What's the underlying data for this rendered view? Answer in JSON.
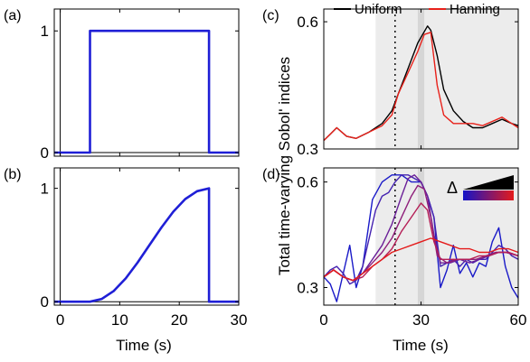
{
  "figure": {
    "panel_labels": [
      "(a)",
      "(b)",
      "(c)",
      "(d)"
    ],
    "left_xlabel": "Time (s)",
    "right_xlabel": "Time (s)",
    "right_ylabel": "Total time-varying Sobol' indices",
    "delta_symbol": "Δ"
  },
  "chart_data": [
    {
      "panel": "a",
      "type": "line",
      "xlim": [
        -1,
        30
      ],
      "ylim": [
        -0.03,
        1.18
      ],
      "x_ticks": [
        0,
        10,
        20,
        30
      ],
      "x_tick_labels": [
        "0",
        "10",
        "20",
        "30"
      ],
      "y_ticks": [
        0,
        1
      ],
      "y_tick_labels": [
        "0",
        "1"
      ],
      "series": [
        {
          "color": "#1f1fd6",
          "x": [
            -1,
            5,
            5,
            25,
            25,
            30
          ],
          "y": [
            0,
            0,
            1,
            1,
            0,
            0
          ]
        }
      ]
    },
    {
      "panel": "b",
      "type": "line",
      "xlim": [
        -1,
        30
      ],
      "ylim": [
        -0.03,
        1.18
      ],
      "x_ticks": [
        0,
        10,
        20,
        30
      ],
      "x_tick_labels": [
        "0",
        "10",
        "20",
        "30"
      ],
      "y_ticks": [
        0,
        1
      ],
      "y_tick_labels": [
        "0",
        "1"
      ],
      "series": [
        {
          "color": "#1f1fd6",
          "x": [
            -1,
            5,
            7,
            9,
            11,
            13,
            15,
            17,
            19,
            21,
            23,
            25,
            25,
            30
          ],
          "y": [
            0,
            0,
            0.025,
            0.095,
            0.206,
            0.345,
            0.5,
            0.655,
            0.794,
            0.905,
            0.975,
            1,
            0,
            0
          ]
        }
      ]
    },
    {
      "panel": "c",
      "type": "line",
      "xlim": [
        0,
        60
      ],
      "ylim": [
        0.3,
        0.63
      ],
      "x_ticks": [
        0,
        30,
        60
      ],
      "x_tick_labels": [
        "0",
        "30",
        "60"
      ],
      "y_ticks": [
        0.3,
        0.6
      ],
      "y_tick_labels": [
        "0.3",
        "0.6"
      ],
      "shaded_band": [
        16,
        60
      ],
      "darker_band": [
        29,
        31
      ],
      "dotted_line_x": 22,
      "legend": [
        "Uniform",
        "Hanning"
      ],
      "series": [
        {
          "name": "Uniform",
          "color": "#000000",
          "x": [
            0,
            2,
            4,
            7,
            10,
            14,
            18,
            21,
            23,
            26,
            29,
            32,
            33,
            35,
            37,
            40,
            43,
            46,
            49,
            52,
            55,
            58,
            60
          ],
          "y": [
            0.32,
            0.335,
            0.35,
            0.33,
            0.325,
            0.34,
            0.36,
            0.39,
            0.43,
            0.49,
            0.55,
            0.59,
            0.58,
            0.52,
            0.44,
            0.39,
            0.365,
            0.35,
            0.35,
            0.36,
            0.37,
            0.36,
            0.355
          ]
        },
        {
          "name": "Hanning",
          "color": "#e8211a",
          "x": [
            0,
            2,
            4,
            7,
            10,
            14,
            18,
            21,
            23,
            26,
            29,
            31,
            33,
            35,
            37,
            40,
            43,
            46,
            49,
            52,
            55,
            58,
            60
          ],
          "y": [
            0.32,
            0.335,
            0.35,
            0.33,
            0.325,
            0.34,
            0.355,
            0.38,
            0.43,
            0.48,
            0.53,
            0.57,
            0.575,
            0.45,
            0.38,
            0.36,
            0.36,
            0.36,
            0.355,
            0.365,
            0.375,
            0.36,
            0.35
          ]
        }
      ]
    },
    {
      "panel": "d",
      "type": "line",
      "xlim": [
        0,
        60
      ],
      "ylim": [
        0.25,
        0.64
      ],
      "x_ticks": [
        0,
        30,
        60
      ],
      "x_tick_labels": [
        "0",
        "30",
        "60"
      ],
      "y_ticks": [
        0.3,
        0.6
      ],
      "y_tick_labels": [
        "0.3",
        "0.6"
      ],
      "shaded_band": [
        16,
        60
      ],
      "darker_band": [
        29,
        31
      ],
      "dotted_line_x": 22,
      "colorbar": {
        "colors": [
          "#1414c8",
          "#e41b1b"
        ]
      },
      "series": [
        {
          "color": "#1a1ac8",
          "x": [
            0,
            2,
            4,
            6,
            8,
            10,
            12,
            15,
            18,
            21,
            24,
            27,
            30,
            32,
            34,
            36,
            38,
            40,
            42,
            44,
            46,
            48,
            50,
            52,
            54,
            56,
            58,
            60
          ],
          "y": [
            0.33,
            0.31,
            0.26,
            0.34,
            0.42,
            0.3,
            0.36,
            0.55,
            0.6,
            0.62,
            0.62,
            0.6,
            0.6,
            0.56,
            0.5,
            0.3,
            0.35,
            0.42,
            0.34,
            0.37,
            0.33,
            0.37,
            0.36,
            0.43,
            0.47,
            0.36,
            0.3,
            0.27
          ]
        },
        {
          "color": "#4422b0",
          "x": [
            0,
            2,
            4,
            6,
            8,
            10,
            12,
            14,
            16,
            18,
            20,
            22,
            24,
            26,
            28,
            30,
            32,
            34,
            36,
            38,
            40,
            42,
            44,
            46,
            48,
            50,
            52,
            54,
            56,
            58,
            60
          ],
          "y": [
            0.33,
            0.35,
            0.36,
            0.34,
            0.31,
            0.32,
            0.36,
            0.44,
            0.52,
            0.56,
            0.57,
            0.6,
            0.62,
            0.62,
            0.61,
            0.6,
            0.56,
            0.5,
            0.36,
            0.37,
            0.38,
            0.36,
            0.38,
            0.37,
            0.38,
            0.38,
            0.4,
            0.42,
            0.41,
            0.39,
            0.38
          ]
        },
        {
          "color": "#6a1f98",
          "x": [
            0,
            3,
            6,
            9,
            12,
            15,
            18,
            21,
            24,
            26,
            28,
            30,
            32,
            34,
            36,
            39,
            42,
            45,
            48,
            51,
            54,
            57,
            60
          ],
          "y": [
            0.33,
            0.35,
            0.33,
            0.32,
            0.34,
            0.38,
            0.42,
            0.48,
            0.56,
            0.61,
            0.62,
            0.6,
            0.56,
            0.45,
            0.37,
            0.37,
            0.38,
            0.37,
            0.38,
            0.39,
            0.4,
            0.4,
            0.39
          ]
        },
        {
          "color": "#8e1e7a",
          "x": [
            0,
            3,
            6,
            9,
            12,
            15,
            18,
            21,
            24,
            27,
            29,
            31,
            33,
            35,
            38,
            41,
            44,
            47,
            50,
            53,
            56,
            60
          ],
          "y": [
            0.33,
            0.35,
            0.33,
            0.32,
            0.34,
            0.37,
            0.4,
            0.44,
            0.5,
            0.56,
            0.59,
            0.58,
            0.5,
            0.39,
            0.37,
            0.38,
            0.38,
            0.38,
            0.39,
            0.4,
            0.4,
            0.39
          ]
        },
        {
          "color": "#b51e56",
          "x": [
            0,
            3,
            6,
            9,
            12,
            15,
            18,
            21,
            24,
            27,
            30,
            32,
            34,
            36,
            39,
            42,
            45,
            48,
            51,
            54,
            57,
            60
          ],
          "y": [
            0.33,
            0.35,
            0.33,
            0.32,
            0.33,
            0.36,
            0.38,
            0.41,
            0.46,
            0.5,
            0.54,
            0.52,
            0.43,
            0.38,
            0.38,
            0.38,
            0.38,
            0.39,
            0.39,
            0.4,
            0.4,
            0.39
          ]
        },
        {
          "color": "#e41b1b",
          "x": [
            0,
            3,
            6,
            9,
            12,
            15,
            18,
            21,
            24,
            27,
            30,
            33,
            36,
            39,
            42,
            45,
            48,
            51,
            54,
            57,
            60
          ],
          "y": [
            0.33,
            0.35,
            0.33,
            0.32,
            0.34,
            0.36,
            0.38,
            0.4,
            0.41,
            0.42,
            0.43,
            0.44,
            0.43,
            0.42,
            0.41,
            0.41,
            0.4,
            0.4,
            0.41,
            0.41,
            0.4
          ]
        }
      ]
    }
  ]
}
